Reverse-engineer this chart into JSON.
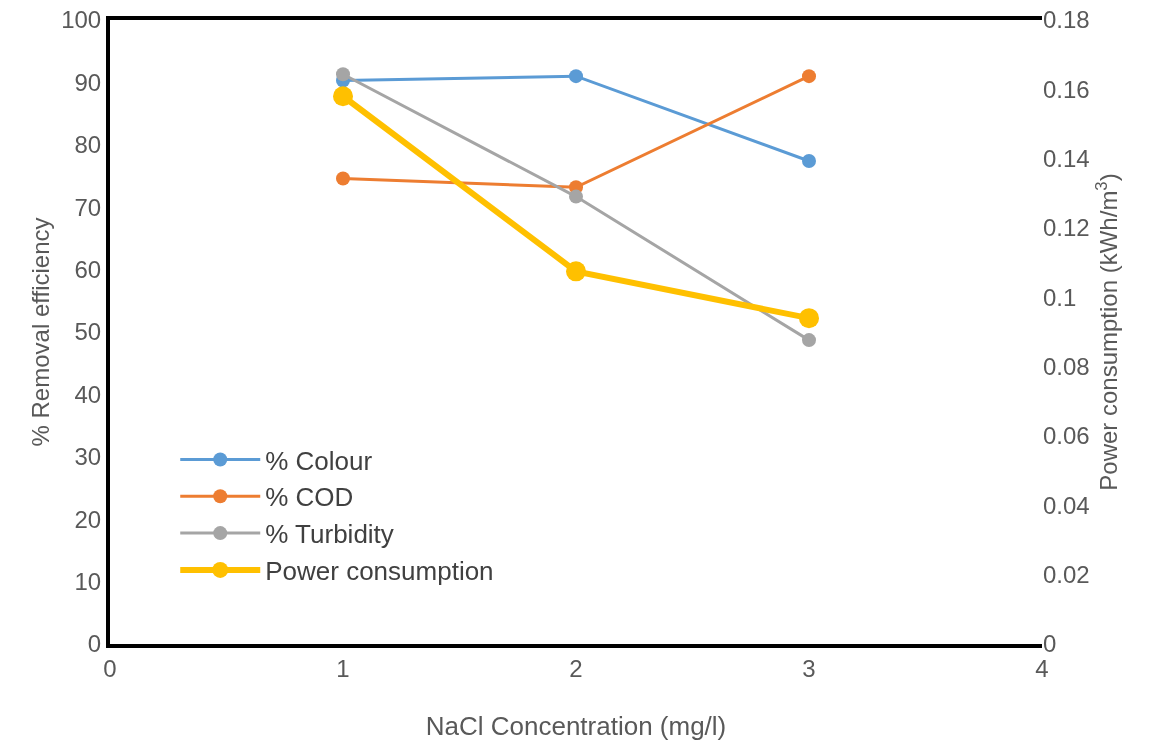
{
  "chart_data": {
    "type": "line",
    "xlabel": "NaCl Concentration (mg/l)",
    "ylabel": "% Removal efficiency",
    "y2label": "Power consumption (kWh/m$^{3}$)",
    "x": [
      1,
      2,
      3
    ],
    "series": [
      {
        "name": "% Colour",
        "color": "#5b9bd5",
        "values": [
          90.3,
          91,
          77.4
        ]
      },
      {
        "name": "% COD",
        "color": "#ed7d31",
        "values": [
          74.6,
          73.2,
          91
        ]
      },
      {
        "name": "% Turbidity",
        "color": "#a5a5a5",
        "values": [
          91.3,
          71.7,
          48.7
        ]
      },
      {
        "name": "Power consumption",
        "color": "#ffc000",
        "values": [
          0.158,
          0.1075,
          0.094
        ],
        "axis": "y2"
      }
    ],
    "xlim": [
      0,
      4
    ],
    "xticks": [
      0,
      1,
      2,
      3,
      4
    ],
    "ylim": [
      0,
      100
    ],
    "yticks": [
      0,
      10,
      20,
      30,
      40,
      50,
      60,
      70,
      80,
      90,
      100
    ],
    "y2lim": [
      0,
      0.18
    ],
    "y2ticks": [
      0,
      0.02,
      0.04,
      0.06,
      0.08,
      {
        "value": 0.1,
        "label": "0.1"
      },
      0.12,
      0.14,
      0.16,
      0.18
    ],
    "grid": false,
    "legend": "bottom left",
    "marker": "circle",
    "line_style": "solid"
  }
}
